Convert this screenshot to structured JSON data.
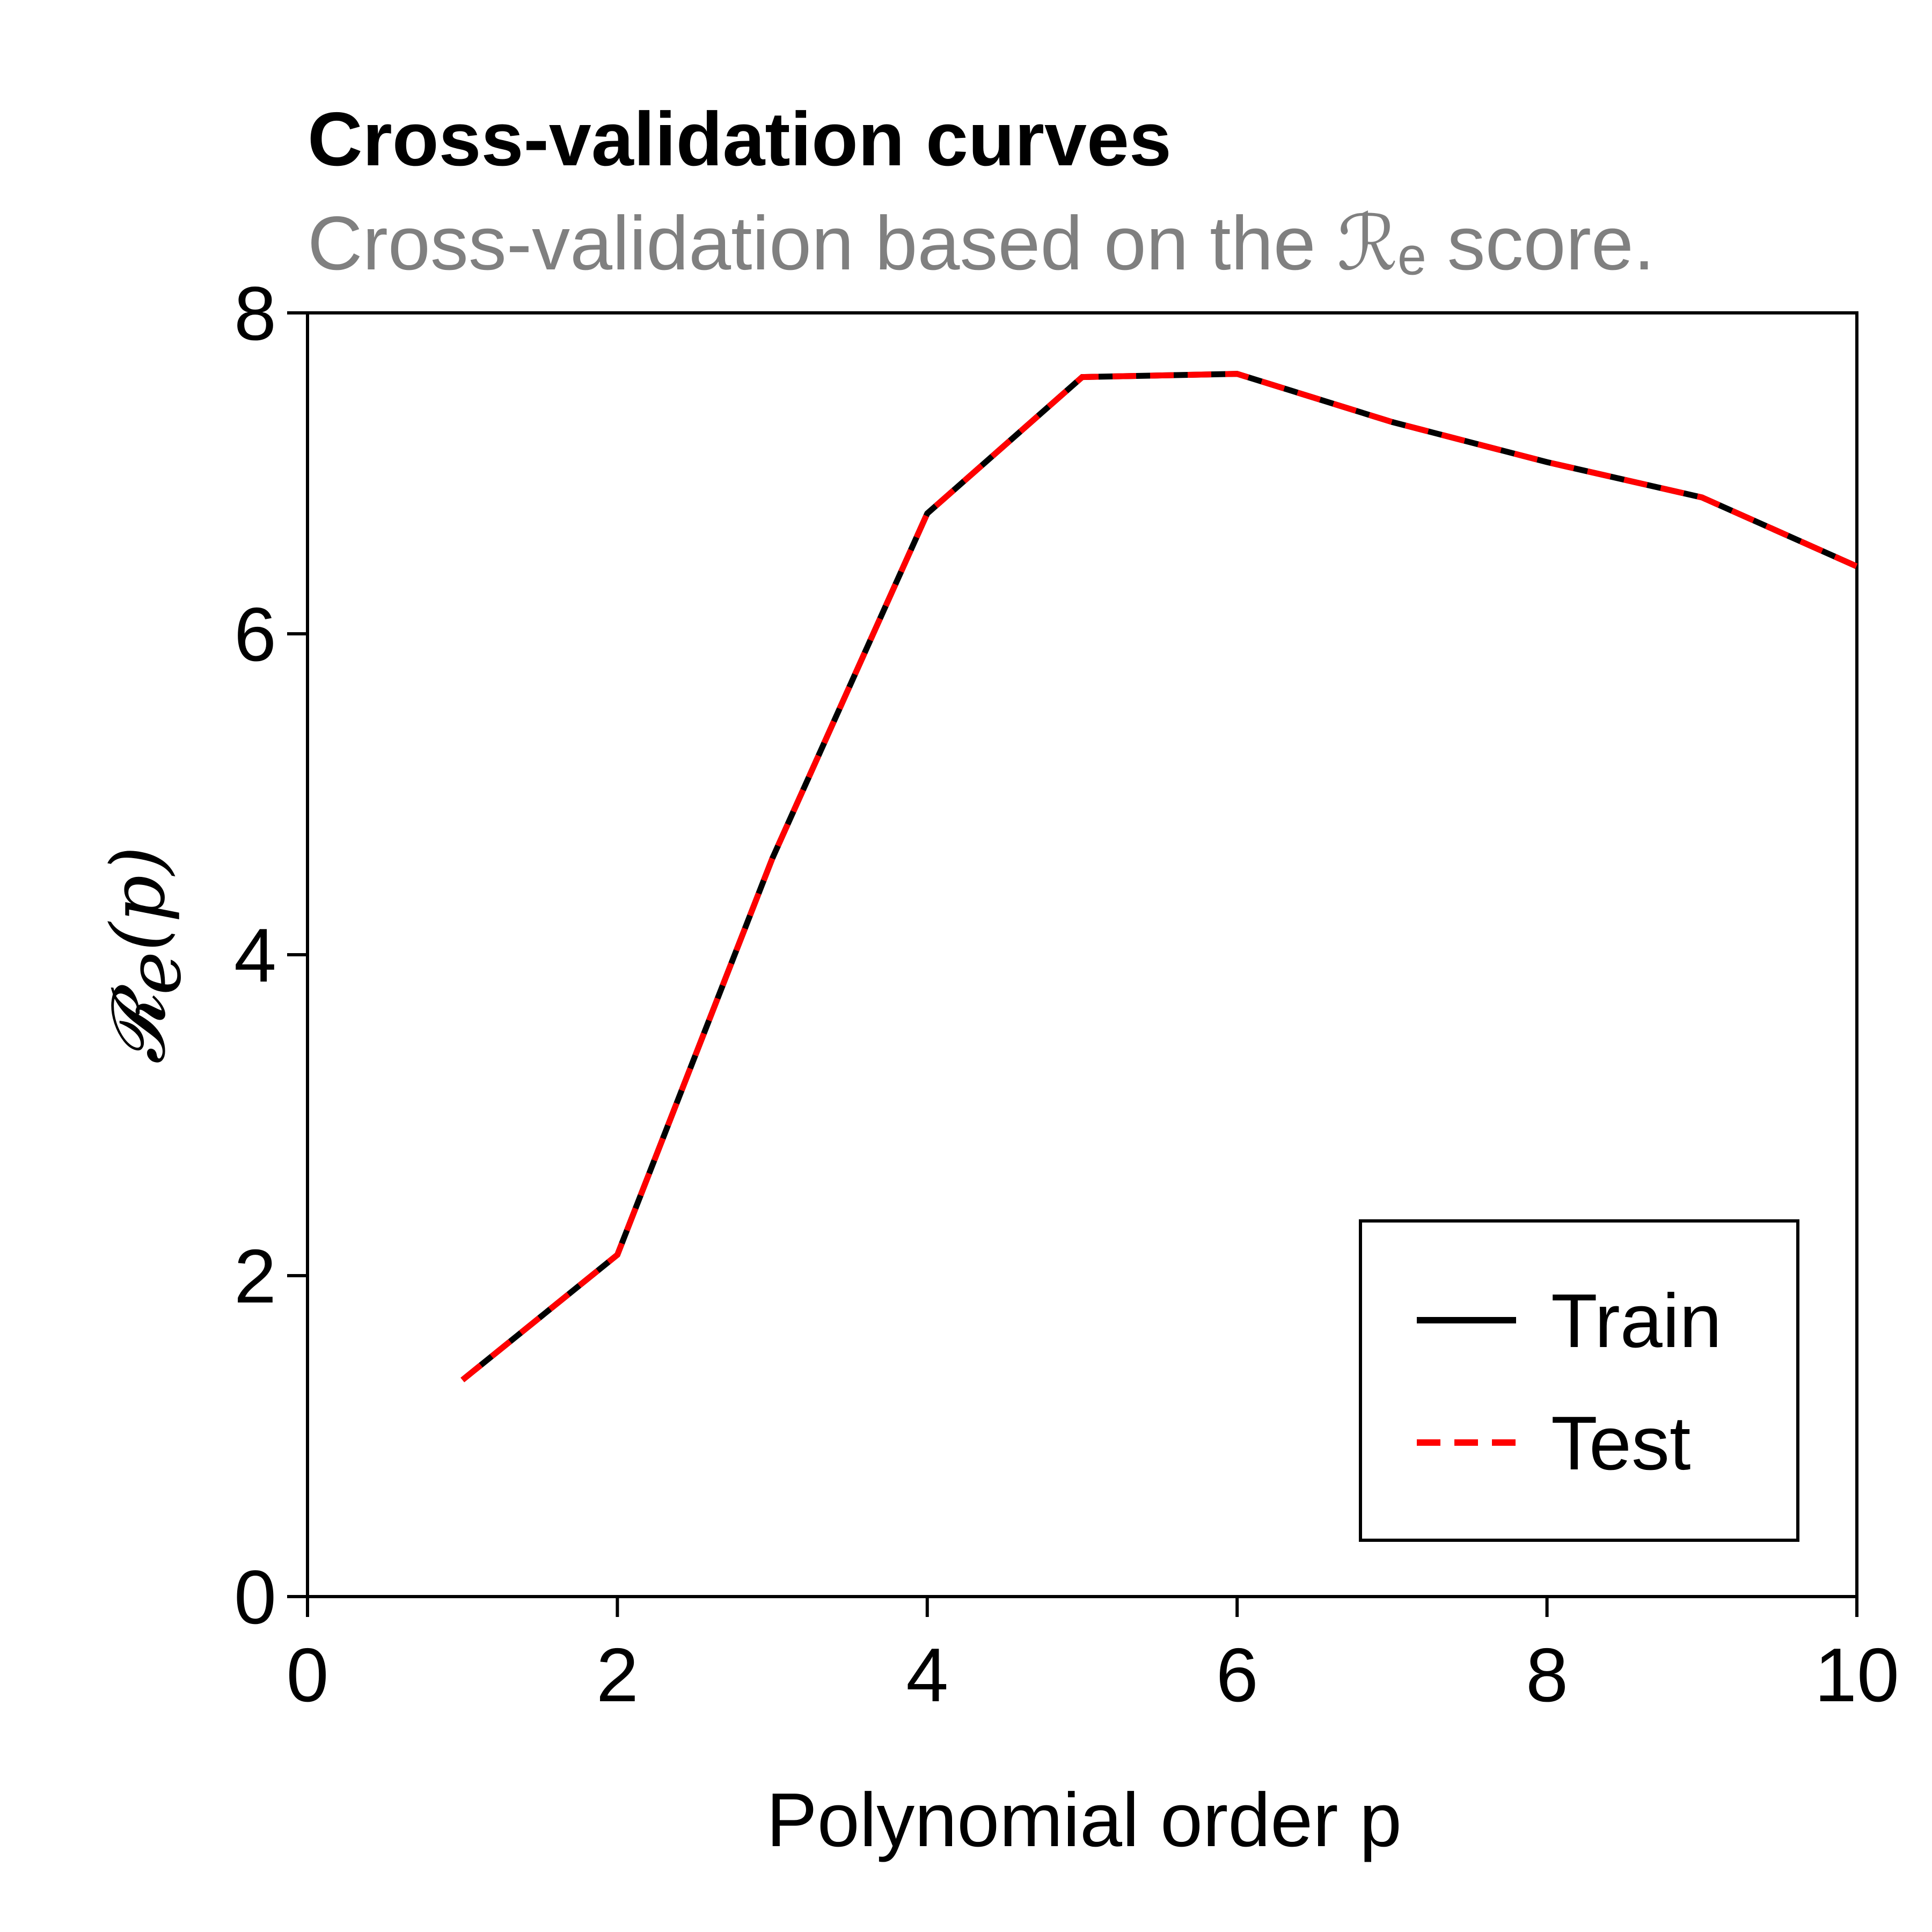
{
  "chart_data": {
    "type": "line",
    "title": "Cross-validation curves",
    "subtitle": "Cross-validation based on the ℛₑ score.",
    "xlabel": "Polynomial order p",
    "ylabel": "𝓡",
    "ylabel_sub": "e",
    "ylabel_arg": "(p)",
    "xlim": [
      0,
      10
    ],
    "ylim": [
      0,
      8
    ],
    "xticks": [
      0,
      2,
      4,
      6,
      8,
      10
    ],
    "yticks": [
      0,
      2,
      4,
      6,
      8
    ],
    "grid": false,
    "legend_position": "bottom-right",
    "series": [
      {
        "name": "Train",
        "color": "#000000",
        "style": "solid",
        "x": [
          1,
          2,
          3,
          4,
          5,
          6,
          7,
          8,
          9,
          10
        ],
        "y": [
          1.35,
          2.13,
          4.6,
          6.75,
          7.6,
          7.62,
          7.32,
          7.07,
          6.85,
          6.42
        ]
      },
      {
        "name": "Test",
        "color": "#ff0000",
        "style": "dashed",
        "x": [
          1,
          2,
          3,
          4,
          5,
          6,
          7,
          8,
          9,
          10
        ],
        "y": [
          1.35,
          2.13,
          4.6,
          6.75,
          7.6,
          7.62,
          7.32,
          7.07,
          6.85,
          6.42
        ]
      }
    ]
  }
}
